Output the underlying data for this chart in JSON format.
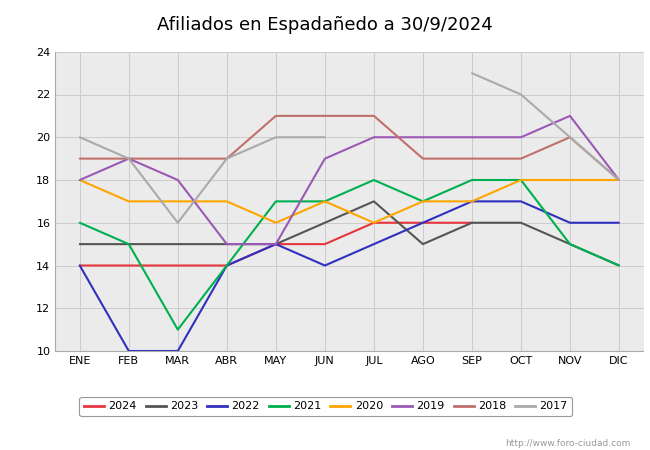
{
  "title": "Afiliados en Espadañedo a 30/9/2024",
  "header_bg": "#5BACD6",
  "months": [
    "ENE",
    "FEB",
    "MAR",
    "ABR",
    "MAY",
    "JUN",
    "JUL",
    "AGO",
    "SEP",
    "OCT",
    "NOV",
    "DIC"
  ],
  "series": {
    "2024": {
      "color": "#e8363d",
      "data": [
        14,
        14,
        14,
        14,
        15,
        15,
        16,
        16,
        16,
        null,
        null,
        null
      ]
    },
    "2023": {
      "color": "#555555",
      "data": [
        15,
        15,
        15,
        15,
        15,
        16,
        17,
        15,
        16,
        16,
        15,
        14
      ]
    },
    "2022": {
      "color": "#3030c0",
      "data": [
        14,
        10,
        10,
        14,
        15,
        14,
        15,
        16,
        17,
        17,
        16,
        16
      ]
    },
    "2021": {
      "color": "#00b050",
      "data": [
        16,
        15,
        11,
        14,
        17,
        17,
        18,
        17,
        18,
        18,
        15,
        14
      ]
    },
    "2020": {
      "color": "#ffa500",
      "data": [
        18,
        17,
        17,
        17,
        16,
        17,
        16,
        17,
        17,
        18,
        18,
        18
      ]
    },
    "2019": {
      "color": "#9b59b6",
      "data": [
        18,
        19,
        18,
        15,
        15,
        19,
        20,
        20,
        20,
        20,
        21,
        18
      ]
    },
    "2018": {
      "color": "#c0706a",
      "data": [
        19,
        19,
        19,
        19,
        21,
        21,
        21,
        19,
        19,
        19,
        20,
        18
      ]
    },
    "2017": {
      "color": "#aaaaaa",
      "data": [
        20,
        19,
        16,
        19,
        20,
        20,
        null,
        null,
        23,
        22,
        20,
        18
      ]
    }
  },
  "ylim": [
    10,
    24
  ],
  "yticks": [
    10,
    12,
    14,
    16,
    18,
    20,
    22,
    24
  ],
  "grid_color": "#cccccc",
  "plot_bg": "#ebebeb",
  "fig_bg": "#ffffff",
  "watermark": "http://www.foro-ciudad.com",
  "legend_order": [
    "2024",
    "2023",
    "2022",
    "2021",
    "2020",
    "2019",
    "2018",
    "2017"
  ],
  "title_fontsize": 13,
  "tick_fontsize": 8,
  "line_width": 1.5
}
